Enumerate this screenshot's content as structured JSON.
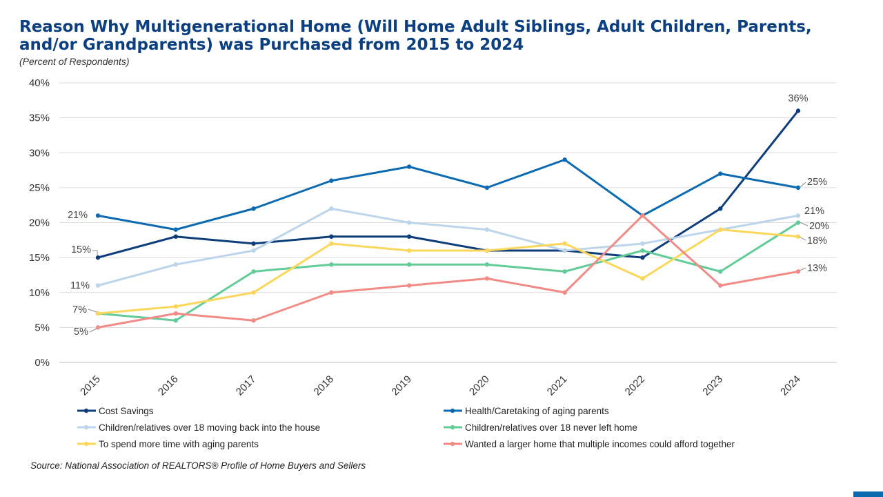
{
  "chart_data": {
    "type": "line",
    "title": "Reason Why Multigenerational Home (Will Home Adult Siblings, Adult Children, Parents, and/or Grandparents) was Purchased from 2015 to 2024",
    "subtitle": "(Percent of Respondents)",
    "x": [
      "2015",
      "2016",
      "2017",
      "2018",
      "2019",
      "2020",
      "2021",
      "2022",
      "2023",
      "2024"
    ],
    "ylim": [
      0,
      40
    ],
    "yticks": [
      "0%",
      "5%",
      "10%",
      "15%",
      "20%",
      "25%",
      "30%",
      "35%",
      "40%"
    ],
    "grid": true,
    "legend_position": "bottom",
    "series": [
      {
        "name": "Cost Savings",
        "color": "#0d3d7a",
        "values": [
          15,
          18,
          17,
          18,
          18,
          16,
          16,
          15,
          22,
          36
        ]
      },
      {
        "name": "Health/Caretaking of aging parents",
        "color": "#0b6ab0",
        "values": [
          21,
          19,
          22,
          26,
          28,
          25,
          29,
          21,
          27,
          25
        ]
      },
      {
        "name": "Children/relatives over 18 moving back into the house",
        "color": "#bcd5ea",
        "values": [
          11,
          14,
          16,
          22,
          20,
          19,
          16,
          17,
          19,
          21
        ]
      },
      {
        "name": "Children/relatives over 18 never left home",
        "color": "#62cc99",
        "values": [
          7,
          6,
          13,
          14,
          14,
          14,
          13,
          16,
          13,
          20
        ]
      },
      {
        "name": "To spend more time with aging parents",
        "color": "#fad75a",
        "values": [
          7,
          8,
          10,
          17,
          16,
          16,
          17,
          12,
          19,
          18
        ]
      },
      {
        "name": "Wanted a larger home that multiple incomes could afford together",
        "color": "#f28b86",
        "values": [
          5,
          7,
          6,
          10,
          11,
          12,
          10,
          21,
          11,
          13
        ]
      }
    ],
    "annotations": {
      "start": [
        "15%",
        "21%",
        "11%",
        "7%",
        "7%",
        "5%"
      ],
      "end": [
        "36%",
        "25%",
        "21%",
        "20%",
        "18%",
        "13%"
      ]
    }
  },
  "source": "Source: National Association of REALTORS® Profile of Home Buyers and Sellers"
}
